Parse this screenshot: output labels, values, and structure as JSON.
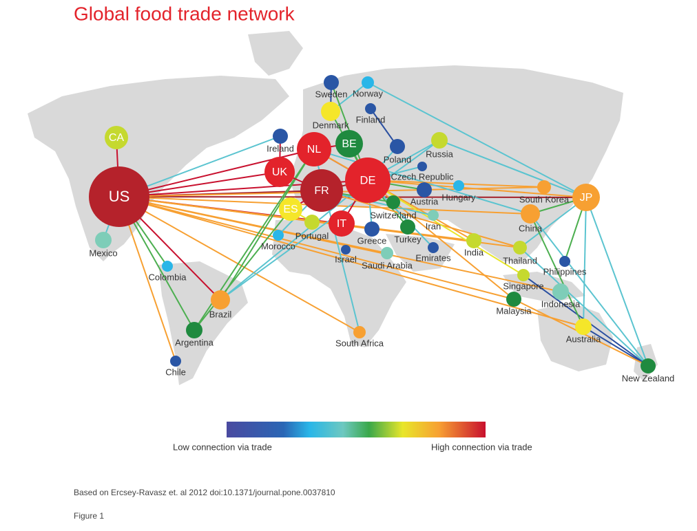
{
  "header": {
    "title": "Global food trade network"
  },
  "nodes": [
    {
      "label": "US",
      "color": "#b5222b"
    },
    {
      "label": "CA",
      "color": "#c5d92f"
    },
    {
      "label": "Mexico",
      "color": "#7ecdb8"
    },
    {
      "label": "Colombia",
      "color": "#29b6e8"
    },
    {
      "label": "Brazil",
      "color": "#f7a032"
    },
    {
      "label": "Argentina",
      "color": "#1f8a3f"
    },
    {
      "label": "Chile",
      "color": "#2a56a5"
    },
    {
      "label": "Ireland",
      "color": "#2a56a5"
    },
    {
      "label": "UK",
      "color": "#e3232b"
    },
    {
      "label": "NL",
      "color": "#e3232b"
    },
    {
      "label": "BE",
      "color": "#1f8a3f"
    },
    {
      "label": "FR",
      "color": "#b5222b"
    },
    {
      "label": "DE",
      "color": "#e3232b"
    },
    {
      "label": "ES",
      "color": "#f5e62a"
    },
    {
      "label": "IT",
      "color": "#e3232b"
    },
    {
      "label": "Portugal",
      "color": "#c5d92f"
    },
    {
      "label": "Morocco",
      "color": "#29b6e8"
    },
    {
      "label": "Sweden",
      "color": "#2a56a5"
    },
    {
      "label": "Norway",
      "color": "#29b6e8"
    },
    {
      "label": "Denmark",
      "color": "#f5e62a"
    },
    {
      "label": "Finland",
      "color": "#2a56a5"
    },
    {
      "label": "Poland",
      "color": "#2a56a5"
    },
    {
      "label": "Russia",
      "color": "#c5d92f"
    },
    {
      "label": "Czech Republic",
      "color": "#2a56a5"
    },
    {
      "label": "Hungary",
      "color": "#29b6e8"
    },
    {
      "label": "Austria",
      "color": "#2a56a5"
    },
    {
      "label": "Switzerland",
      "color": "#1f8a3f"
    },
    {
      "label": "Iran",
      "color": "#7ecdb8"
    },
    {
      "label": "Greece",
      "color": "#2a56a5"
    },
    {
      "label": "Turkey",
      "color": "#1f8a3f"
    },
    {
      "label": "Israel",
      "color": "#2a56a5"
    },
    {
      "label": "Saudi Arabia",
      "color": "#7ecdb8"
    },
    {
      "label": "Emirates",
      "color": "#2a56a5"
    },
    {
      "label": "India",
      "color": "#c5d92f"
    },
    {
      "label": "South Africa",
      "color": "#f7a032"
    },
    {
      "label": "South Korea",
      "color": "#f7a032"
    },
    {
      "label": "JP",
      "color": "#f7a032"
    },
    {
      "label": "China",
      "color": "#f7a032"
    },
    {
      "label": "Thailand",
      "color": "#c5d92f"
    },
    {
      "label": "Philippines",
      "color": "#2a56a5"
    },
    {
      "label": "Singapore",
      "color": "#c5d92f"
    },
    {
      "label": "Indonesia",
      "color": "#7ecdb8"
    },
    {
      "label": "Malaysia",
      "color": "#1f8a3f"
    },
    {
      "label": "Australia",
      "color": "#f5e62a"
    },
    {
      "label": "New Zealand",
      "color": "#1f8a3f"
    }
  ],
  "legend": {
    "low": "Low connection via trade",
    "high": "High connection via trade"
  },
  "footer": {
    "source": "Based on Ercsey-Ravasz et. al 2012 doi:10.1371/journal.pone.0037810",
    "figure": "Figure 1"
  }
}
